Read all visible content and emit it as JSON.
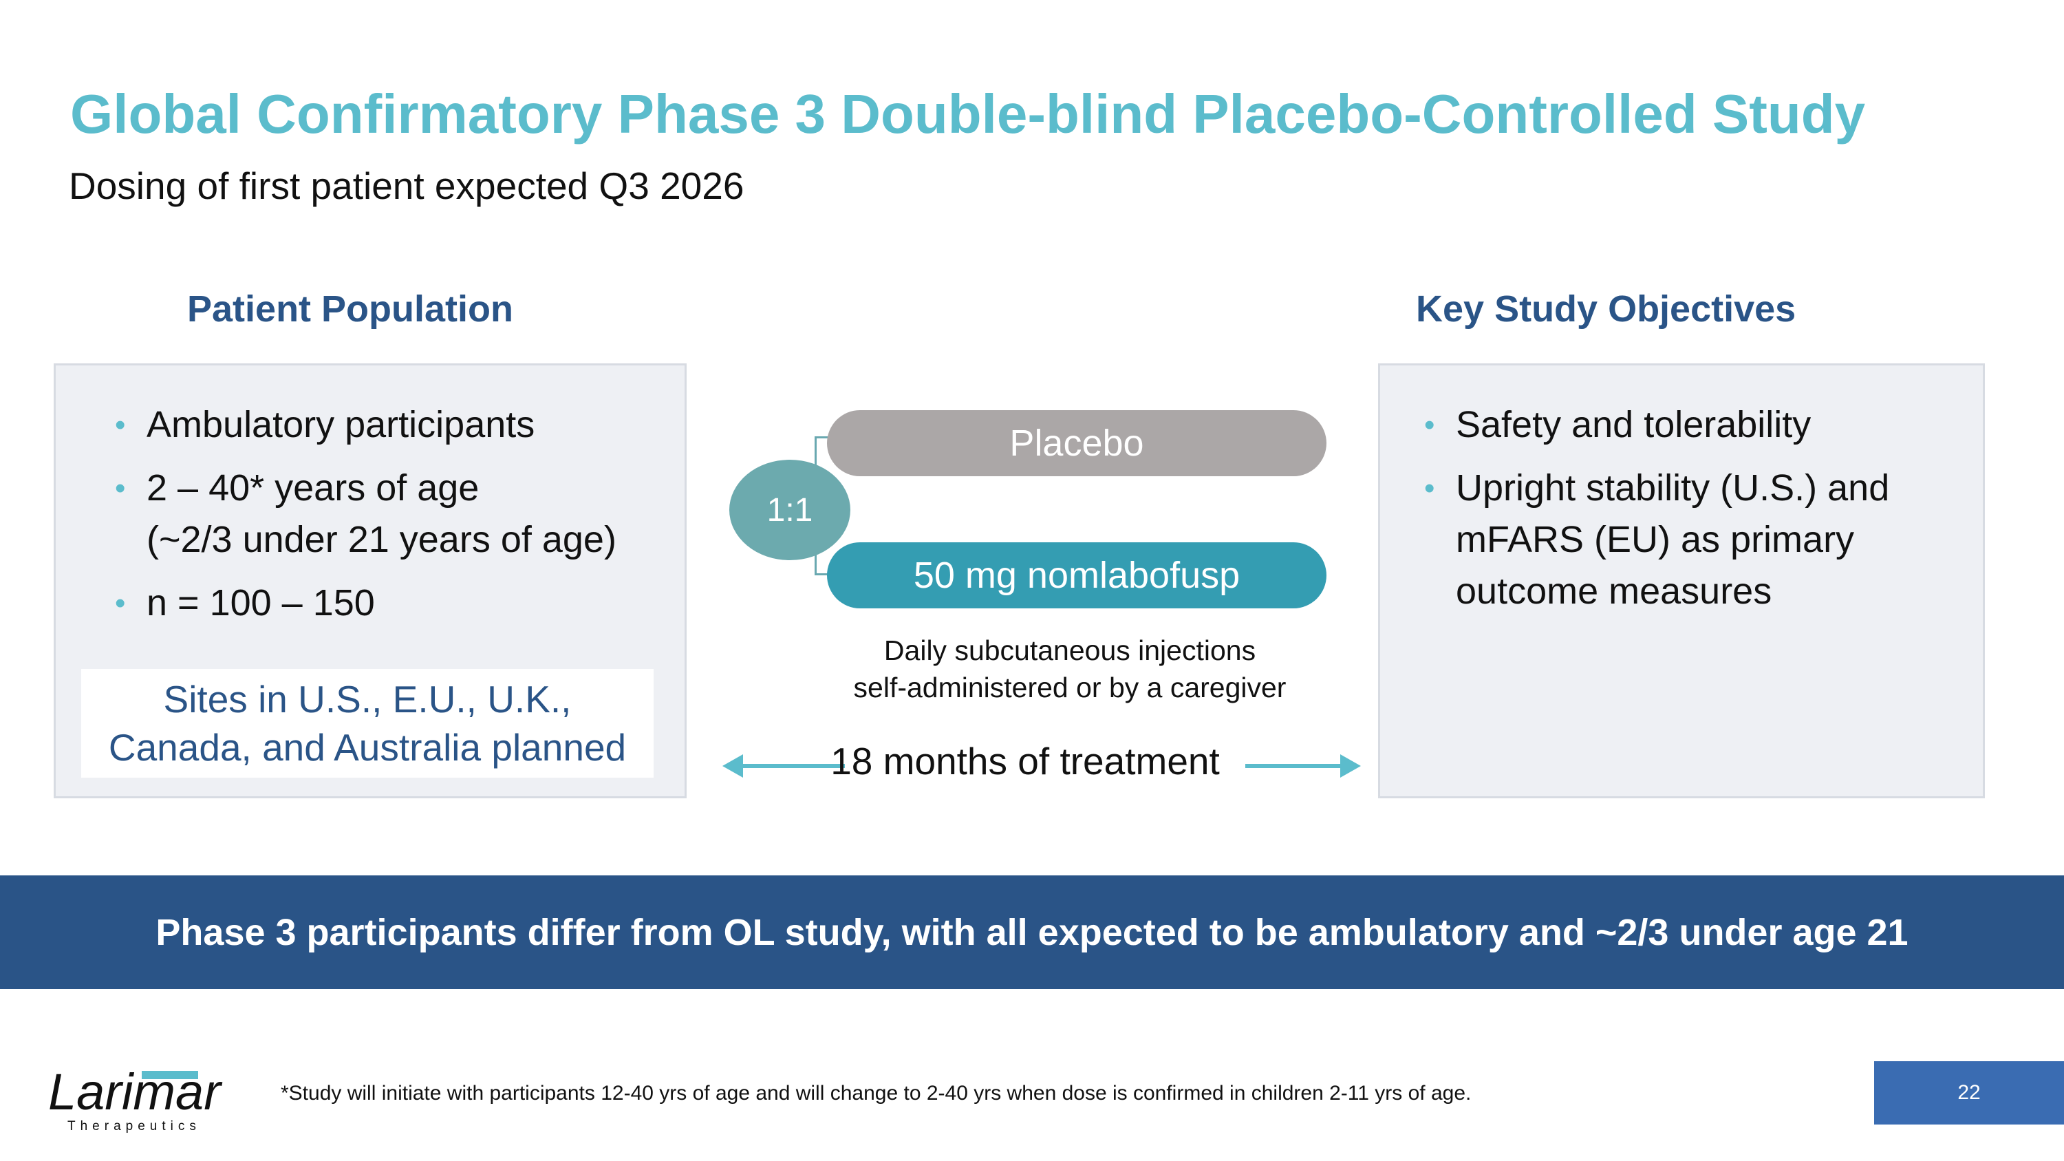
{
  "title": "Global Confirmatory Phase 3 Double-blind Placebo-Controlled Study",
  "subtitle": "Dosing of first patient expected Q3 2026",
  "patient_population": {
    "heading": "Patient Population",
    "bullets": [
      "Ambulatory participants",
      "2 – 40* years of age\n(~2/3 under 21 years of age)",
      "n = 100 – 150"
    ],
    "sites": "Sites in U.S., E.U., U.K.,\nCanada, and Australia planned"
  },
  "design": {
    "ratio": "1:1",
    "arms": [
      "Placebo",
      "50 mg nomlabofusp"
    ],
    "dosing_note": "Daily subcutaneous injections\nself-administered or by a caregiver",
    "duration": "18 months of treatment"
  },
  "objectives": {
    "heading": "Key Study Objectives",
    "bullets": [
      "Safety and tolerability",
      "Upright stability (U.S.) and mFARS (EU) as primary outcome measures"
    ]
  },
  "banner": "Phase 3 participants differ from OL study, with all expected to be ambulatory and ~2/3 under age 21",
  "footer": {
    "logo_name": "Larimar",
    "logo_tagline": "Therapeutics",
    "footnote": "*Study will initiate with participants 12-40 yrs of age and will change to 2-40 yrs when dose is confirmed in children 2-11 yrs of age.",
    "page_number": "22"
  },
  "colors": {
    "title": "#5bbccc",
    "heading": "#2a5487",
    "banner": "#2a5487",
    "placebo_arm": "#aba7a7",
    "drug_arm": "#349db2",
    "ratio_circle": "#6caaae",
    "page_box": "#3a6cb2"
  }
}
